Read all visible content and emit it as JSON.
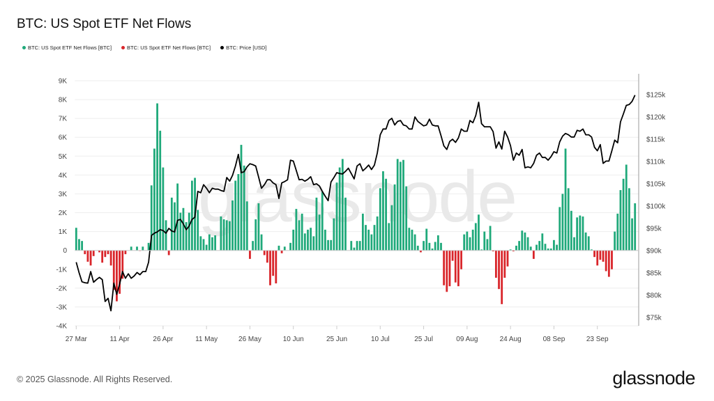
{
  "title": "BTC: US Spot ETF Net Flows",
  "legend": [
    {
      "label": "BTC: US Spot ETF Net Flows [BTC]",
      "color": "#1fa97a"
    },
    {
      "label": "BTC: US Spot ETF Net Flows [BTC]",
      "color": "#d9252a"
    },
    {
      "label": "BTC: Price [USD]",
      "color": "#000000"
    }
  ],
  "footer": "© 2025 Glassnode. All Rights Reserved.",
  "logo": "glassnode",
  "watermark": "glassnode",
  "chart_data": {
    "type": "bar+line",
    "title": "BTC: US Spot ETF Net Flows",
    "x_start": "2025-03-27",
    "x_step": "1 day",
    "x_tick_labels": [
      "27 Mar",
      "11 Apr",
      "26 Apr",
      "11 May",
      "26 May",
      "10 Jun",
      "25 Jun",
      "10 Jul",
      "25 Jul",
      "09 Aug",
      "24 Aug",
      "08 Sep",
      "23 Sep"
    ],
    "y_left": {
      "range": [
        -4000,
        9000
      ],
      "tick_labels": [
        "-4K",
        "-3K",
        "-2K",
        "-1K",
        "0",
        "1K",
        "2K",
        "3K",
        "4K",
        "5K",
        "6K",
        "7K",
        "8K",
        "9K"
      ]
    },
    "y_right": {
      "range": [
        75000,
        127000
      ],
      "tick_labels": [
        "$75k",
        "$80k",
        "$85k",
        "$90k",
        "$95k",
        "$100k",
        "$105k",
        "$110k",
        "$115k",
        "$120k",
        "$125k"
      ]
    },
    "grid": true,
    "legend_position": "top-left",
    "positive_color": "#1fa97a",
    "negative_color": "#d9252a",
    "price_color": "#000000",
    "series": [
      {
        "name": "BTC: US Spot ETF Net Flows [BTC]",
        "type": "bar",
        "values": [
          1200,
          600,
          500,
          -200,
          -600,
          -800,
          -300,
          0,
          -100,
          -650,
          -350,
          -200,
          -800,
          -2100,
          -2700,
          -2300,
          -1500,
          -200,
          0,
          200,
          0,
          200,
          -20,
          200,
          0,
          400,
          3450,
          5400,
          7800,
          6350,
          4400,
          1600,
          -250,
          2800,
          2550,
          3550,
          2000,
          2250,
          1500,
          2000,
          3700,
          3850,
          2150,
          750,
          600,
          300,
          850,
          700,
          800,
          0,
          1800,
          1650,
          1600,
          1550,
          2650,
          3700,
          4050,
          5600,
          4500,
          2600,
          -450,
          500,
          1650,
          2500,
          850,
          -250,
          -650,
          -1850,
          -1350,
          -1750,
          250,
          -150,
          200,
          0,
          400,
          1100,
          2200,
          1600,
          1950,
          900,
          1100,
          1200,
          750,
          2800,
          1900,
          3100,
          1100,
          550,
          550,
          1700,
          3600,
          4400,
          4850,
          2800,
          0,
          500,
          150,
          500,
          500,
          1950,
          1350,
          1100,
          850,
          1350,
          1800,
          3300,
          4200,
          3800,
          1450,
          2400,
          3500,
          4850,
          4700,
          4800,
          3400,
          1200,
          1100,
          850,
          250,
          -100,
          500,
          1150,
          400,
          100,
          450,
          800,
          400,
          -1850,
          -2200,
          -1900,
          -550,
          -1700,
          -1900,
          -1000,
          850,
          1000,
          700,
          1100,
          1450,
          1900,
          50,
          1000,
          600,
          1300,
          -50,
          -1450,
          -2050,
          -2850,
          -1450,
          -850,
          50,
          -50,
          250,
          500,
          1050,
          950,
          700,
          200,
          -450,
          300,
          500,
          900,
          350,
          100,
          100,
          550,
          300,
          2300,
          3000,
          5400,
          3300,
          2100,
          700,
          1750,
          1850,
          1800,
          950,
          750,
          50,
          -350,
          -800,
          -500,
          -600,
          -1100,
          -1400,
          -1000,
          1000,
          1950,
          3200,
          3800,
          4550,
          3300,
          1700,
          2500
        ]
      },
      {
        "name": "BTC: Price [USD]",
        "type": "line",
        "values": [
          87400,
          85000,
          83000,
          82800,
          82700,
          85300,
          82900,
          83500,
          84000,
          83500,
          78600,
          79300,
          76500,
          82700,
          80200,
          82500,
          85300,
          83800,
          84800,
          83800,
          84300,
          85100,
          84600,
          85300,
          85300,
          87400,
          93400,
          93900,
          94200,
          94700,
          94500,
          93900,
          95000,
          94400,
          94200,
          96800,
          97000,
          96000,
          94700,
          95500,
          97000,
          97500,
          103300,
          103000,
          104800,
          104000,
          103000,
          104000,
          103800,
          103800,
          103500,
          103300,
          106400,
          105600,
          106900,
          109000,
          111600,
          107500,
          107700,
          108800,
          109500,
          109300,
          109000,
          106500,
          104000,
          104800,
          105900,
          105900,
          105200,
          104800,
          101700,
          105200,
          105500,
          105900,
          110300,
          110100,
          108000,
          105900,
          106000,
          105600,
          106000,
          106600,
          104800,
          105000,
          104500,
          103300,
          102200,
          101200,
          105400,
          106400,
          107500,
          107300,
          107200,
          107800,
          108500,
          107300,
          106100,
          109000,
          109500,
          107900,
          108500,
          109200,
          108200,
          109200,
          111900,
          116000,
          117300,
          117300,
          119200,
          119700,
          118200,
          119000,
          119200,
          118200,
          118000,
          117300,
          117300,
          120000,
          119000,
          118500,
          118000,
          118200,
          119500,
          118200,
          118000,
          118000,
          115800,
          113500,
          112700,
          114500,
          115000,
          114300,
          115300,
          117300,
          116800,
          116800,
          119200,
          118700,
          120300,
          123300,
          118500,
          117800,
          117800,
          117800,
          116700,
          113000,
          114400,
          112800,
          116800,
          115500,
          113600,
          110300,
          111900,
          111400,
          112700,
          108600,
          108800,
          108600,
          109600,
          111400,
          111900,
          110900,
          110900,
          110300,
          111100,
          112200,
          111900,
          114400,
          115700,
          116300,
          116000,
          115500,
          115500,
          117000,
          116800,
          117300,
          116000,
          116000,
          115500,
          113200,
          112400,
          113800,
          109600,
          110100,
          110100,
          112400,
          114800,
          114200,
          118900,
          120700,
          122600,
          122800,
          123500,
          124900
        ]
      }
    ]
  }
}
